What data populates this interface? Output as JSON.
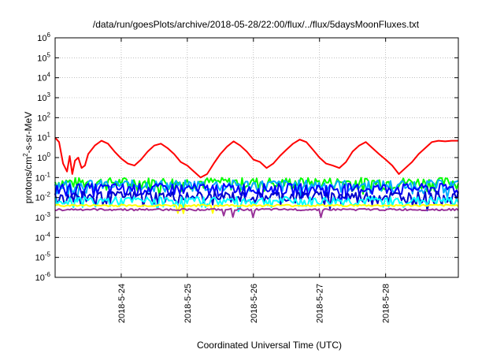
{
  "chart_data": {
    "type": "line",
    "title": "/data/run/goesPlots/archive/2018-05-28/22:00/flux/../flux/5daysMoonFluxes.txt",
    "xlabel": "Coordinated Universal Time (UTC)",
    "ylabel": {
      "pre": "protons/cm",
      "sup": "2",
      "post": "-s-sr-MeV"
    },
    "y_scale": "log",
    "ylim": [
      1e-06,
      1000000.0
    ],
    "y_ticks": [
      {
        "value": 1000000.0,
        "base": "10",
        "exp": "6"
      },
      {
        "value": 100000.0,
        "base": "10",
        "exp": "5"
      },
      {
        "value": 10000.0,
        "base": "10",
        "exp": "4"
      },
      {
        "value": 1000.0,
        "base": "10",
        "exp": "3"
      },
      {
        "value": 100.0,
        "base": "10",
        "exp": "2"
      },
      {
        "value": 10.0,
        "base": "10",
        "exp": "1"
      },
      {
        "value": 1.0,
        "base": "10",
        "exp": "0"
      },
      {
        "value": 0.1,
        "base": "10",
        "exp": "-1"
      },
      {
        "value": 0.01,
        "base": "10",
        "exp": "-2"
      },
      {
        "value": 0.001,
        "base": "10",
        "exp": "-3"
      },
      {
        "value": 0.0001,
        "base": "10",
        "exp": "-4"
      },
      {
        "value": 1e-05,
        "base": "10",
        "exp": "-5"
      },
      {
        "value": 1e-06,
        "base": "10",
        "exp": "-6"
      }
    ],
    "xlim_days": [
      0,
      6.1
    ],
    "x_ticks": [
      {
        "day": 1.0,
        "label": "2018-5-24"
      },
      {
        "day": 2.0,
        "label": "2018-5-25"
      },
      {
        "day": 3.0,
        "label": "2018-5-26"
      },
      {
        "day": 4.0,
        "label": "2018-5-27"
      },
      {
        "day": 5.0,
        "label": "2018-5-28"
      }
    ],
    "grid": true,
    "x_start_date": "2018-5-23",
    "series": [
      {
        "color": "#ff0000",
        "x": [
          0.0,
          0.06,
          0.12,
          0.18,
          0.22,
          0.26,
          0.3,
          0.35,
          0.4,
          0.45,
          0.5,
          0.6,
          0.7,
          0.8,
          0.9,
          1.0,
          1.1,
          1.2,
          1.3,
          1.4,
          1.5,
          1.6,
          1.7,
          1.8,
          1.9,
          2.0,
          2.1,
          2.2,
          2.3,
          2.4,
          2.5,
          2.6,
          2.7,
          2.8,
          2.9,
          3.0,
          3.1,
          3.2,
          3.3,
          3.4,
          3.5,
          3.6,
          3.7,
          3.8,
          3.9,
          4.0,
          4.1,
          4.2,
          4.3,
          4.4,
          4.5,
          4.6,
          4.7,
          4.8,
          4.9,
          5.0,
          5.1,
          5.2,
          5.3,
          5.4,
          5.5,
          5.6,
          5.7,
          5.8,
          5.9,
          6.0,
          6.1
        ],
        "values": [
          10,
          6,
          0.5,
          0.2,
          1.2,
          0.15,
          0.7,
          1.0,
          0.3,
          0.4,
          1.5,
          4.0,
          7.0,
          5.0,
          2.0,
          0.9,
          0.5,
          0.4,
          0.8,
          2.0,
          4.0,
          5.0,
          3.0,
          1.5,
          0.6,
          0.4,
          0.2,
          0.1,
          0.15,
          0.5,
          1.5,
          3.5,
          6.5,
          4.0,
          2.0,
          0.8,
          0.6,
          0.3,
          0.5,
          1.2,
          2.5,
          5.0,
          8.0,
          6.0,
          2.5,
          1.0,
          0.5,
          0.4,
          0.3,
          0.6,
          2.0,
          4.0,
          6.0,
          3.0,
          1.5,
          0.8,
          0.4,
          0.15,
          0.3,
          0.6,
          1.5,
          3.0,
          6.0,
          7.0,
          6.5,
          7.0,
          7.0
        ]
      },
      {
        "color": "#00ff00",
        "x": [
          0.0,
          6.1
        ],
        "values": [
          0.06,
          0.06
        ],
        "jitter": 0.3
      },
      {
        "color": "#00aaff",
        "x": [
          0.0,
          6.1
        ],
        "values": [
          0.045,
          0.045
        ],
        "jitter": 0.3
      },
      {
        "color": "#0000ff",
        "x": [
          0.0,
          6.1
        ],
        "values": [
          0.03,
          0.03
        ],
        "jitter": 0.3
      },
      {
        "color": "#0000cc",
        "x": [
          0.0,
          6.1
        ],
        "values": [
          0.012,
          0.012
        ],
        "jitter": 0.3
      },
      {
        "color": "#00ffff",
        "x": [
          0.0,
          6.1
        ],
        "values": [
          0.007,
          0.007
        ],
        "jitter": 0.25
      },
      {
        "color": "#ffff00",
        "x": [
          0.0,
          6.1
        ],
        "values": [
          0.004,
          0.004
        ],
        "jitter": 0.05
      },
      {
        "color": "#993399",
        "x": [
          0.0,
          6.1
        ],
        "values": [
          0.0025,
          0.0025
        ],
        "jitter": 0.05
      }
    ]
  }
}
